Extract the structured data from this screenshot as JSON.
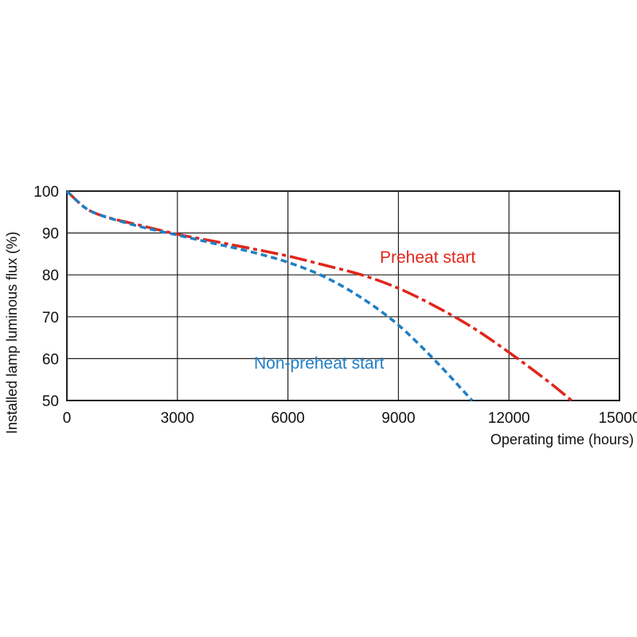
{
  "chart_data": {
    "type": "line",
    "xlabel": "Operating time (hours)",
    "ylabel": "Installed lamp luminous flux  (%)",
    "xlim": [
      0,
      15000
    ],
    "ylim": [
      50,
      100
    ],
    "xticks": [
      0,
      3000,
      6000,
      9000,
      12000,
      15000
    ],
    "yticks": [
      100,
      90,
      80,
      70,
      60,
      50
    ],
    "grid": true,
    "series": [
      {
        "name": "Preheat start",
        "color": "#e0261c",
        "style": "dash-dot",
        "x": [
          0,
          500,
          1000,
          2000,
          3000,
          4000,
          5000,
          6000,
          7000,
          8000,
          9000,
          10000,
          11000,
          12000,
          13000,
          13700
        ],
        "y": [
          100,
          96,
          94,
          91.8,
          89.7,
          88,
          86.3,
          84.5,
          82.3,
          80,
          76.8,
          72.5,
          67.5,
          61.5,
          55,
          50
        ]
      },
      {
        "name": "Non-preheat start",
        "color": "#1f7fc4",
        "style": "dashed",
        "x": [
          0,
          500,
          1000,
          2000,
          3000,
          4000,
          5000,
          6000,
          7000,
          8000,
          9000,
          10000,
          11000
        ],
        "y": [
          100,
          96,
          94,
          91.5,
          89.5,
          87.5,
          85.5,
          83,
          79.5,
          74.5,
          68,
          59.5,
          50
        ]
      }
    ]
  }
}
